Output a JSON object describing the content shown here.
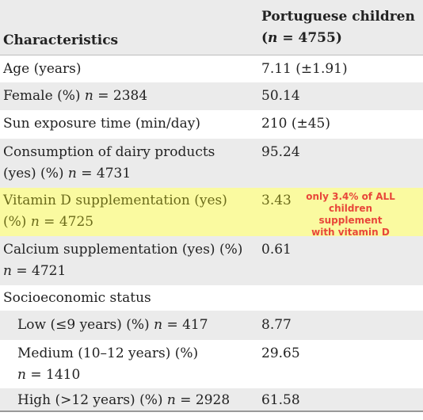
{
  "table": {
    "header": {
      "characteristics": "Characteristics",
      "col2_line1": "Portuguese children",
      "col2_line2_prefix": "(",
      "col2_line2_n": "n",
      "col2_line2_suffix": " = 4755)"
    },
    "rows": [
      {
        "label": "Age (years)",
        "value": "7.11 (±1.91)"
      },
      {
        "label": "Female (%) ",
        "n": "n",
        "n_suffix": " = 2384",
        "value": "50.14"
      },
      {
        "label": "Sun exposure time (min/day)",
        "value": "210 (±45)"
      },
      {
        "label_line1": "Consumption of dairy products",
        "label_line2": "(yes) (%) ",
        "n": "n",
        "n_suffix": " = 4731",
        "value": "95.24"
      },
      {
        "label_line1": "Vitamin D supplementation (yes)",
        "label_line2": "(%) ",
        "n": "n",
        "n_suffix": " = 4725",
        "value": "3.43",
        "annotation": [
          "only 3.4% of ALL",
          "children supplement",
          "with vitamin D"
        ]
      },
      {
        "label_line1": "Calcium supplementation (yes) (%)",
        "n": "n",
        "n_suffix": " = 4721",
        "value": "0.61"
      },
      {
        "label": "Socioeconomic status",
        "value": ""
      },
      {
        "label": "Low (≤9 years) (%) ",
        "n": "n",
        "n_suffix": " = 417",
        "value": "8.77"
      },
      {
        "label_line1": "Medium (10–12 years) (%)",
        "n": "n",
        "n_suffix": " = 1410",
        "value": "29.65"
      },
      {
        "label": "High (>12 years) (%) ",
        "n": "n",
        "n_suffix": " = 2928",
        "value": "61.58"
      }
    ]
  },
  "colors": {
    "shade": "#ebebeb",
    "highlight": "#fafaa0",
    "annotation": "#e8473a"
  }
}
